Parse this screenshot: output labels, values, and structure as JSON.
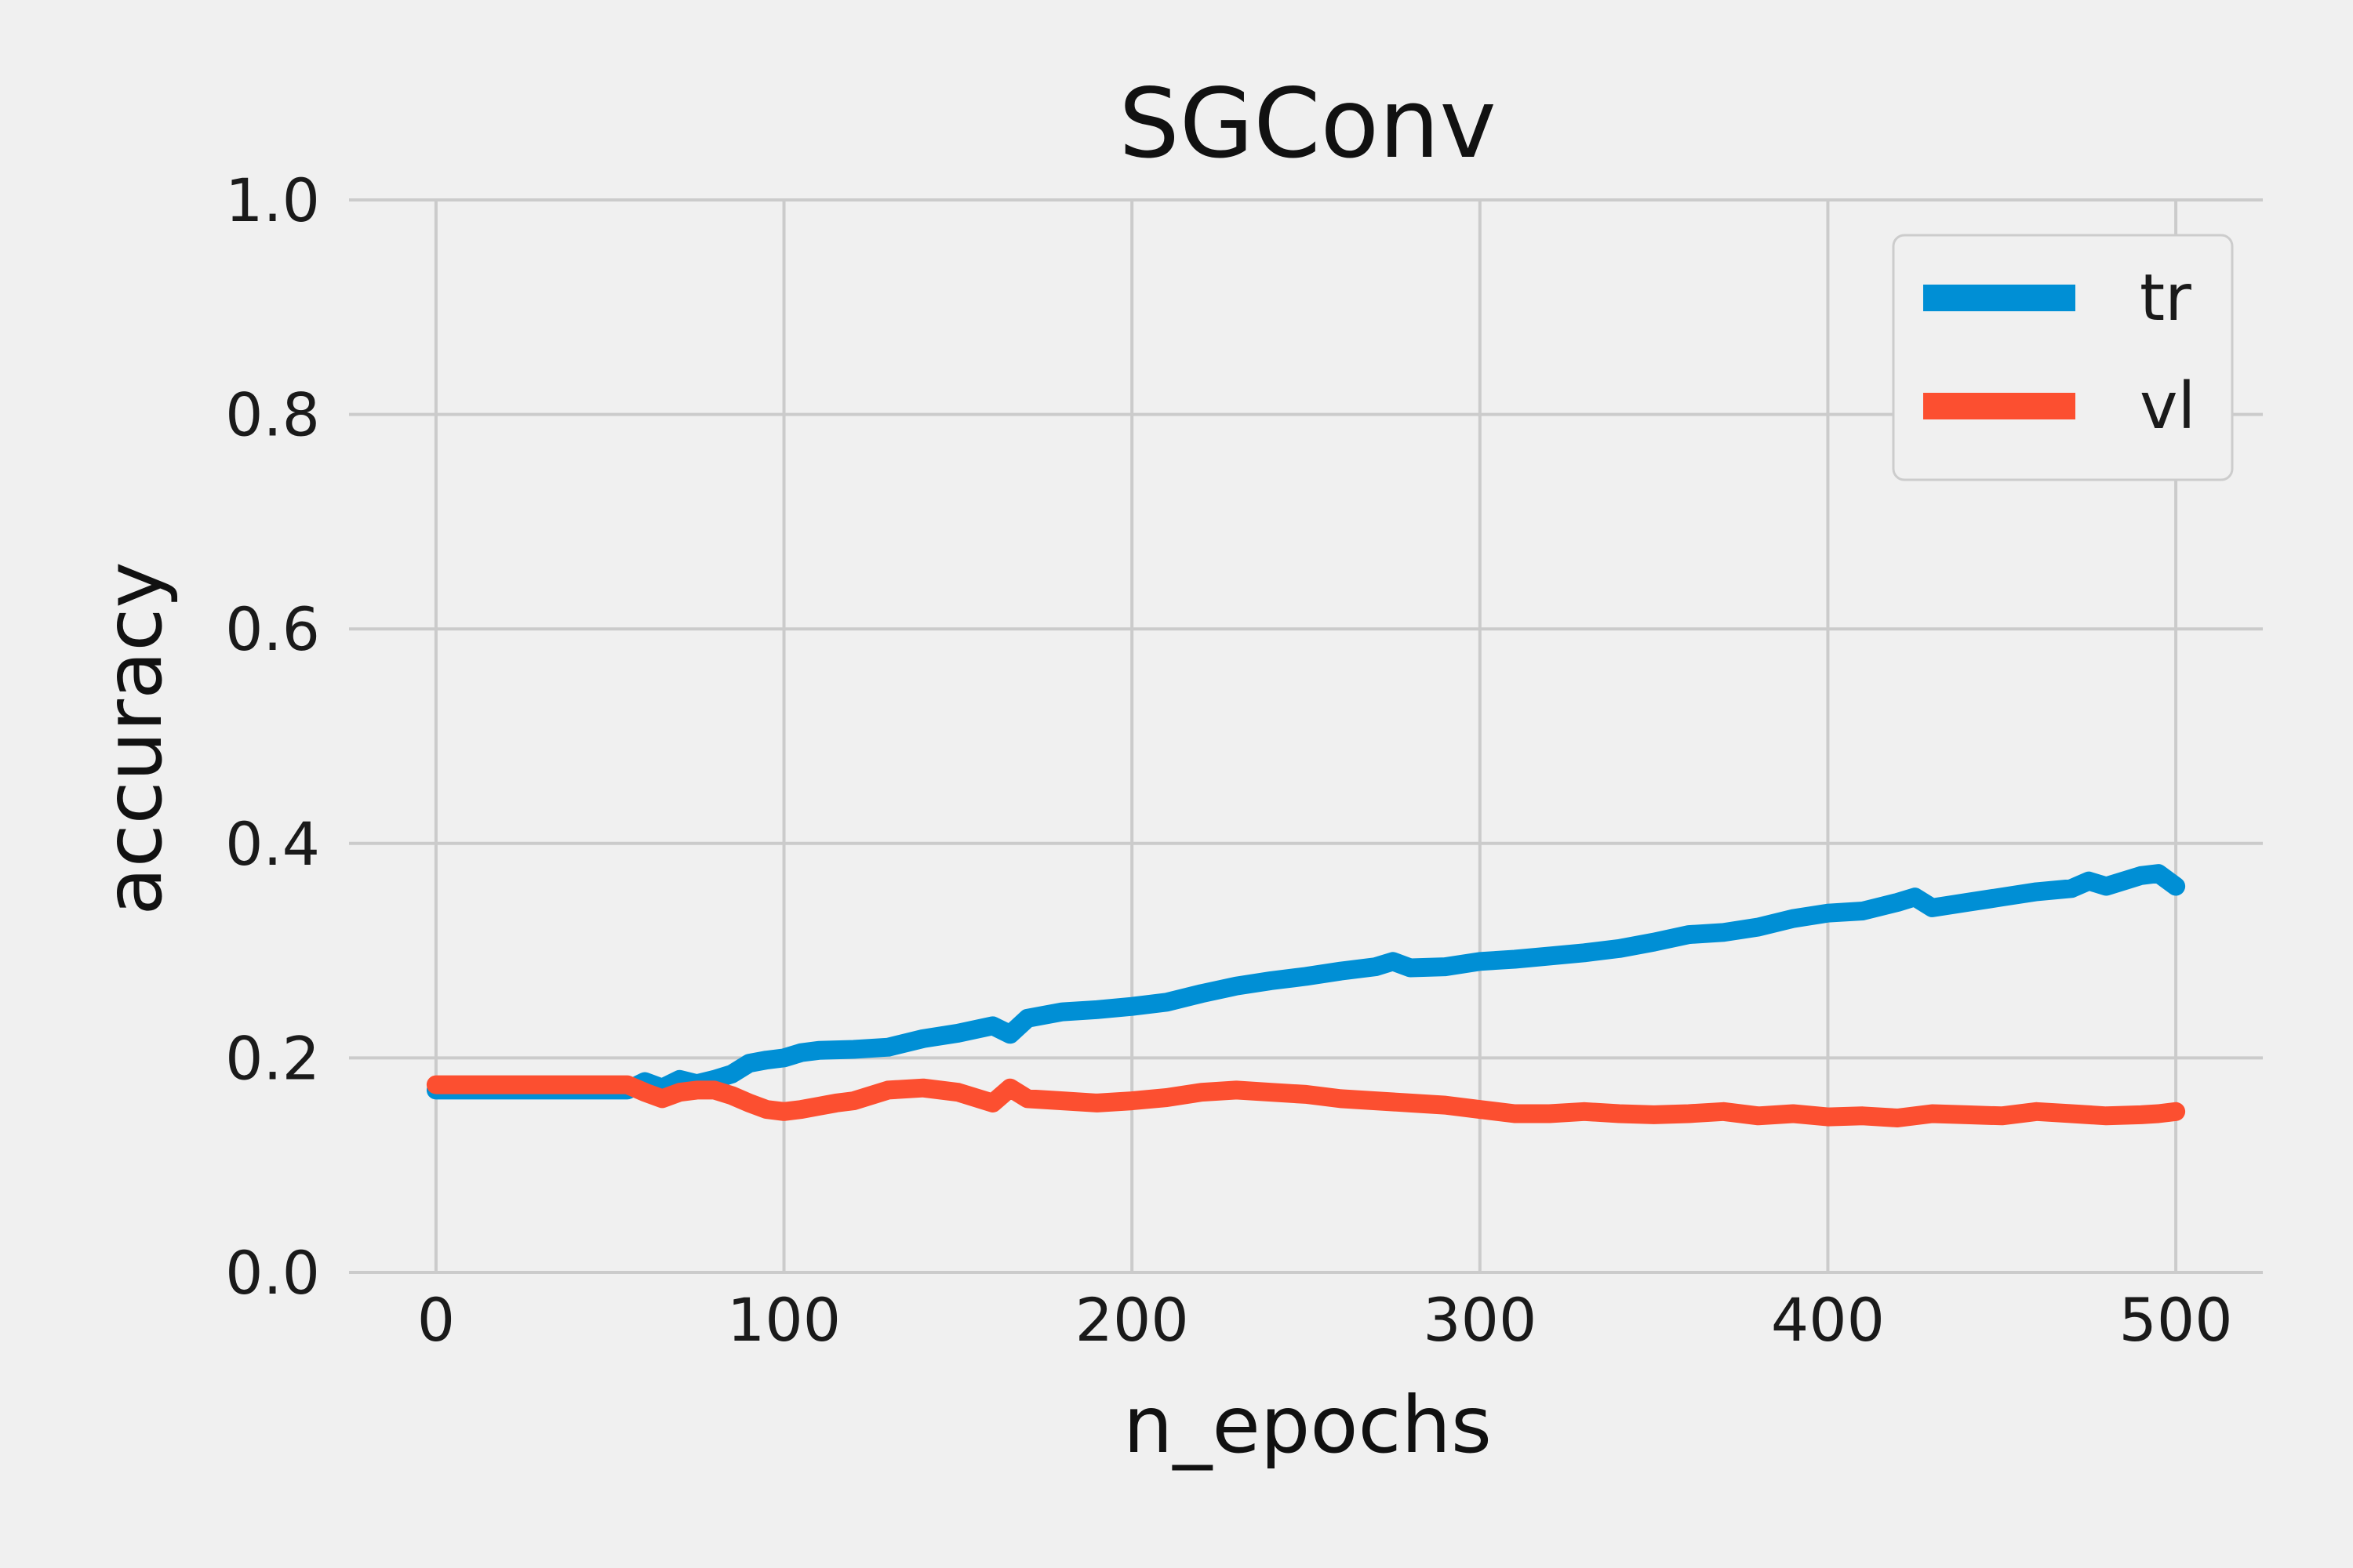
{
  "chart_data": {
    "type": "line",
    "title": "SGConv",
    "xlabel": "n_epochs",
    "ylabel": "accuracy",
    "xlim": [
      -25,
      525
    ],
    "ylim": [
      0.0,
      1.0
    ],
    "xticks": [
      0,
      100,
      200,
      300,
      400,
      500
    ],
    "yticks": [
      0.0,
      0.2,
      0.4,
      0.6,
      0.8,
      1.0
    ],
    "xtick_labels": [
      "0",
      "100",
      "200",
      "300",
      "400",
      "500"
    ],
    "ytick_labels": [
      "0.0",
      "0.2",
      "0.4",
      "0.6",
      "0.8",
      "1.0"
    ],
    "grid": true,
    "legend_position": "top-right",
    "series": [
      {
        "name": "tr",
        "color": "#008fd5",
        "x": [
          0,
          55,
          60,
          65,
          70,
          75,
          80,
          85,
          90,
          95,
          100,
          105,
          110,
          120,
          130,
          140,
          150,
          160,
          165,
          170,
          180,
          190,
          200,
          210,
          220,
          230,
          240,
          250,
          260,
          270,
          275,
          280,
          290,
          300,
          310,
          320,
          330,
          340,
          350,
          360,
          370,
          380,
          390,
          400,
          410,
          420,
          425,
          430,
          440,
          450,
          460,
          470,
          475,
          480,
          490,
          495,
          500
        ],
        "y": [
          0.17,
          0.17,
          0.178,
          0.172,
          0.18,
          0.176,
          0.18,
          0.185,
          0.195,
          0.198,
          0.2,
          0.205,
          0.207,
          0.208,
          0.21,
          0.218,
          0.223,
          0.23,
          0.222,
          0.237,
          0.243,
          0.245,
          0.248,
          0.252,
          0.26,
          0.267,
          0.272,
          0.276,
          0.281,
          0.285,
          0.29,
          0.284,
          0.285,
          0.29,
          0.292,
          0.295,
          0.298,
          0.302,
          0.308,
          0.315,
          0.317,
          0.322,
          0.33,
          0.335,
          0.337,
          0.345,
          0.35,
          0.34,
          0.345,
          0.35,
          0.355,
          0.358,
          0.365,
          0.36,
          0.37,
          0.372,
          0.36
        ]
      },
      {
        "name": "vl",
        "color": "#fc4f30",
        "x": [
          0,
          55,
          60,
          65,
          70,
          75,
          80,
          85,
          90,
          95,
          100,
          105,
          110,
          115,
          120,
          130,
          140,
          150,
          160,
          165,
          170,
          180,
          190,
          200,
          210,
          220,
          230,
          240,
          250,
          260,
          270,
          280,
          290,
          300,
          310,
          320,
          330,
          340,
          350,
          360,
          370,
          380,
          390,
          400,
          410,
          420,
          430,
          440,
          450,
          460,
          470,
          480,
          490,
          495,
          500
        ],
        "y": [
          0.175,
          0.175,
          0.168,
          0.162,
          0.168,
          0.17,
          0.17,
          0.165,
          0.158,
          0.152,
          0.15,
          0.152,
          0.155,
          0.158,
          0.16,
          0.17,
          0.172,
          0.168,
          0.158,
          0.172,
          0.162,
          0.16,
          0.158,
          0.16,
          0.163,
          0.168,
          0.17,
          0.168,
          0.166,
          0.162,
          0.16,
          0.158,
          0.156,
          0.152,
          0.148,
          0.148,
          0.15,
          0.148,
          0.147,
          0.148,
          0.15,
          0.146,
          0.148,
          0.145,
          0.146,
          0.144,
          0.148,
          0.147,
          0.146,
          0.15,
          0.148,
          0.146,
          0.147,
          0.148,
          0.15
        ]
      }
    ]
  }
}
